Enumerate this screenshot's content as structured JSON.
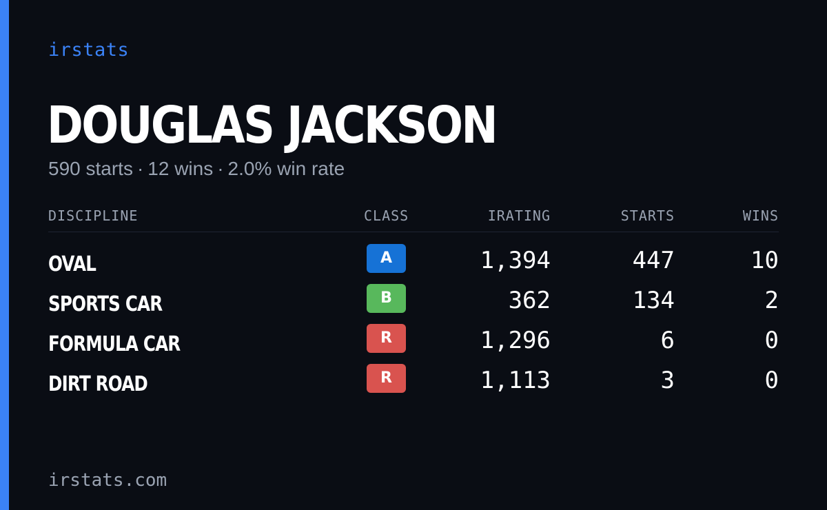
{
  "brand": "irstats",
  "driver": {
    "name": "DOUGLAS JACKSON",
    "starts_text": "590 starts",
    "wins_text": "12 wins",
    "win_rate_text": "2.0% win rate",
    "separator": "·"
  },
  "table": {
    "headers": {
      "discipline": "DISCIPLINE",
      "class": "CLASS",
      "irating": "IRATING",
      "starts": "STARTS",
      "wins": "WINS"
    },
    "rows": [
      {
        "discipline": "OVAL",
        "class": "A",
        "class_color": "#1672d6",
        "irating": "1,394",
        "starts": "447",
        "wins": "10"
      },
      {
        "discipline": "SPORTS CAR",
        "class": "B",
        "class_color": "#58b85c",
        "irating": "362",
        "starts": "134",
        "wins": "2"
      },
      {
        "discipline": "FORMULA CAR",
        "class": "R",
        "class_color": "#d9534f",
        "irating": "1,296",
        "starts": "6",
        "wins": "0"
      },
      {
        "discipline": "DIRT ROAD",
        "class": "R",
        "class_color": "#d9534f",
        "irating": "1,113",
        "starts": "3",
        "wins": "0"
      }
    ]
  },
  "footer": "irstats.com",
  "colors": {
    "accent": "#3b82f6",
    "background": "#0a0d14",
    "muted_text": "#9aa3b2"
  }
}
